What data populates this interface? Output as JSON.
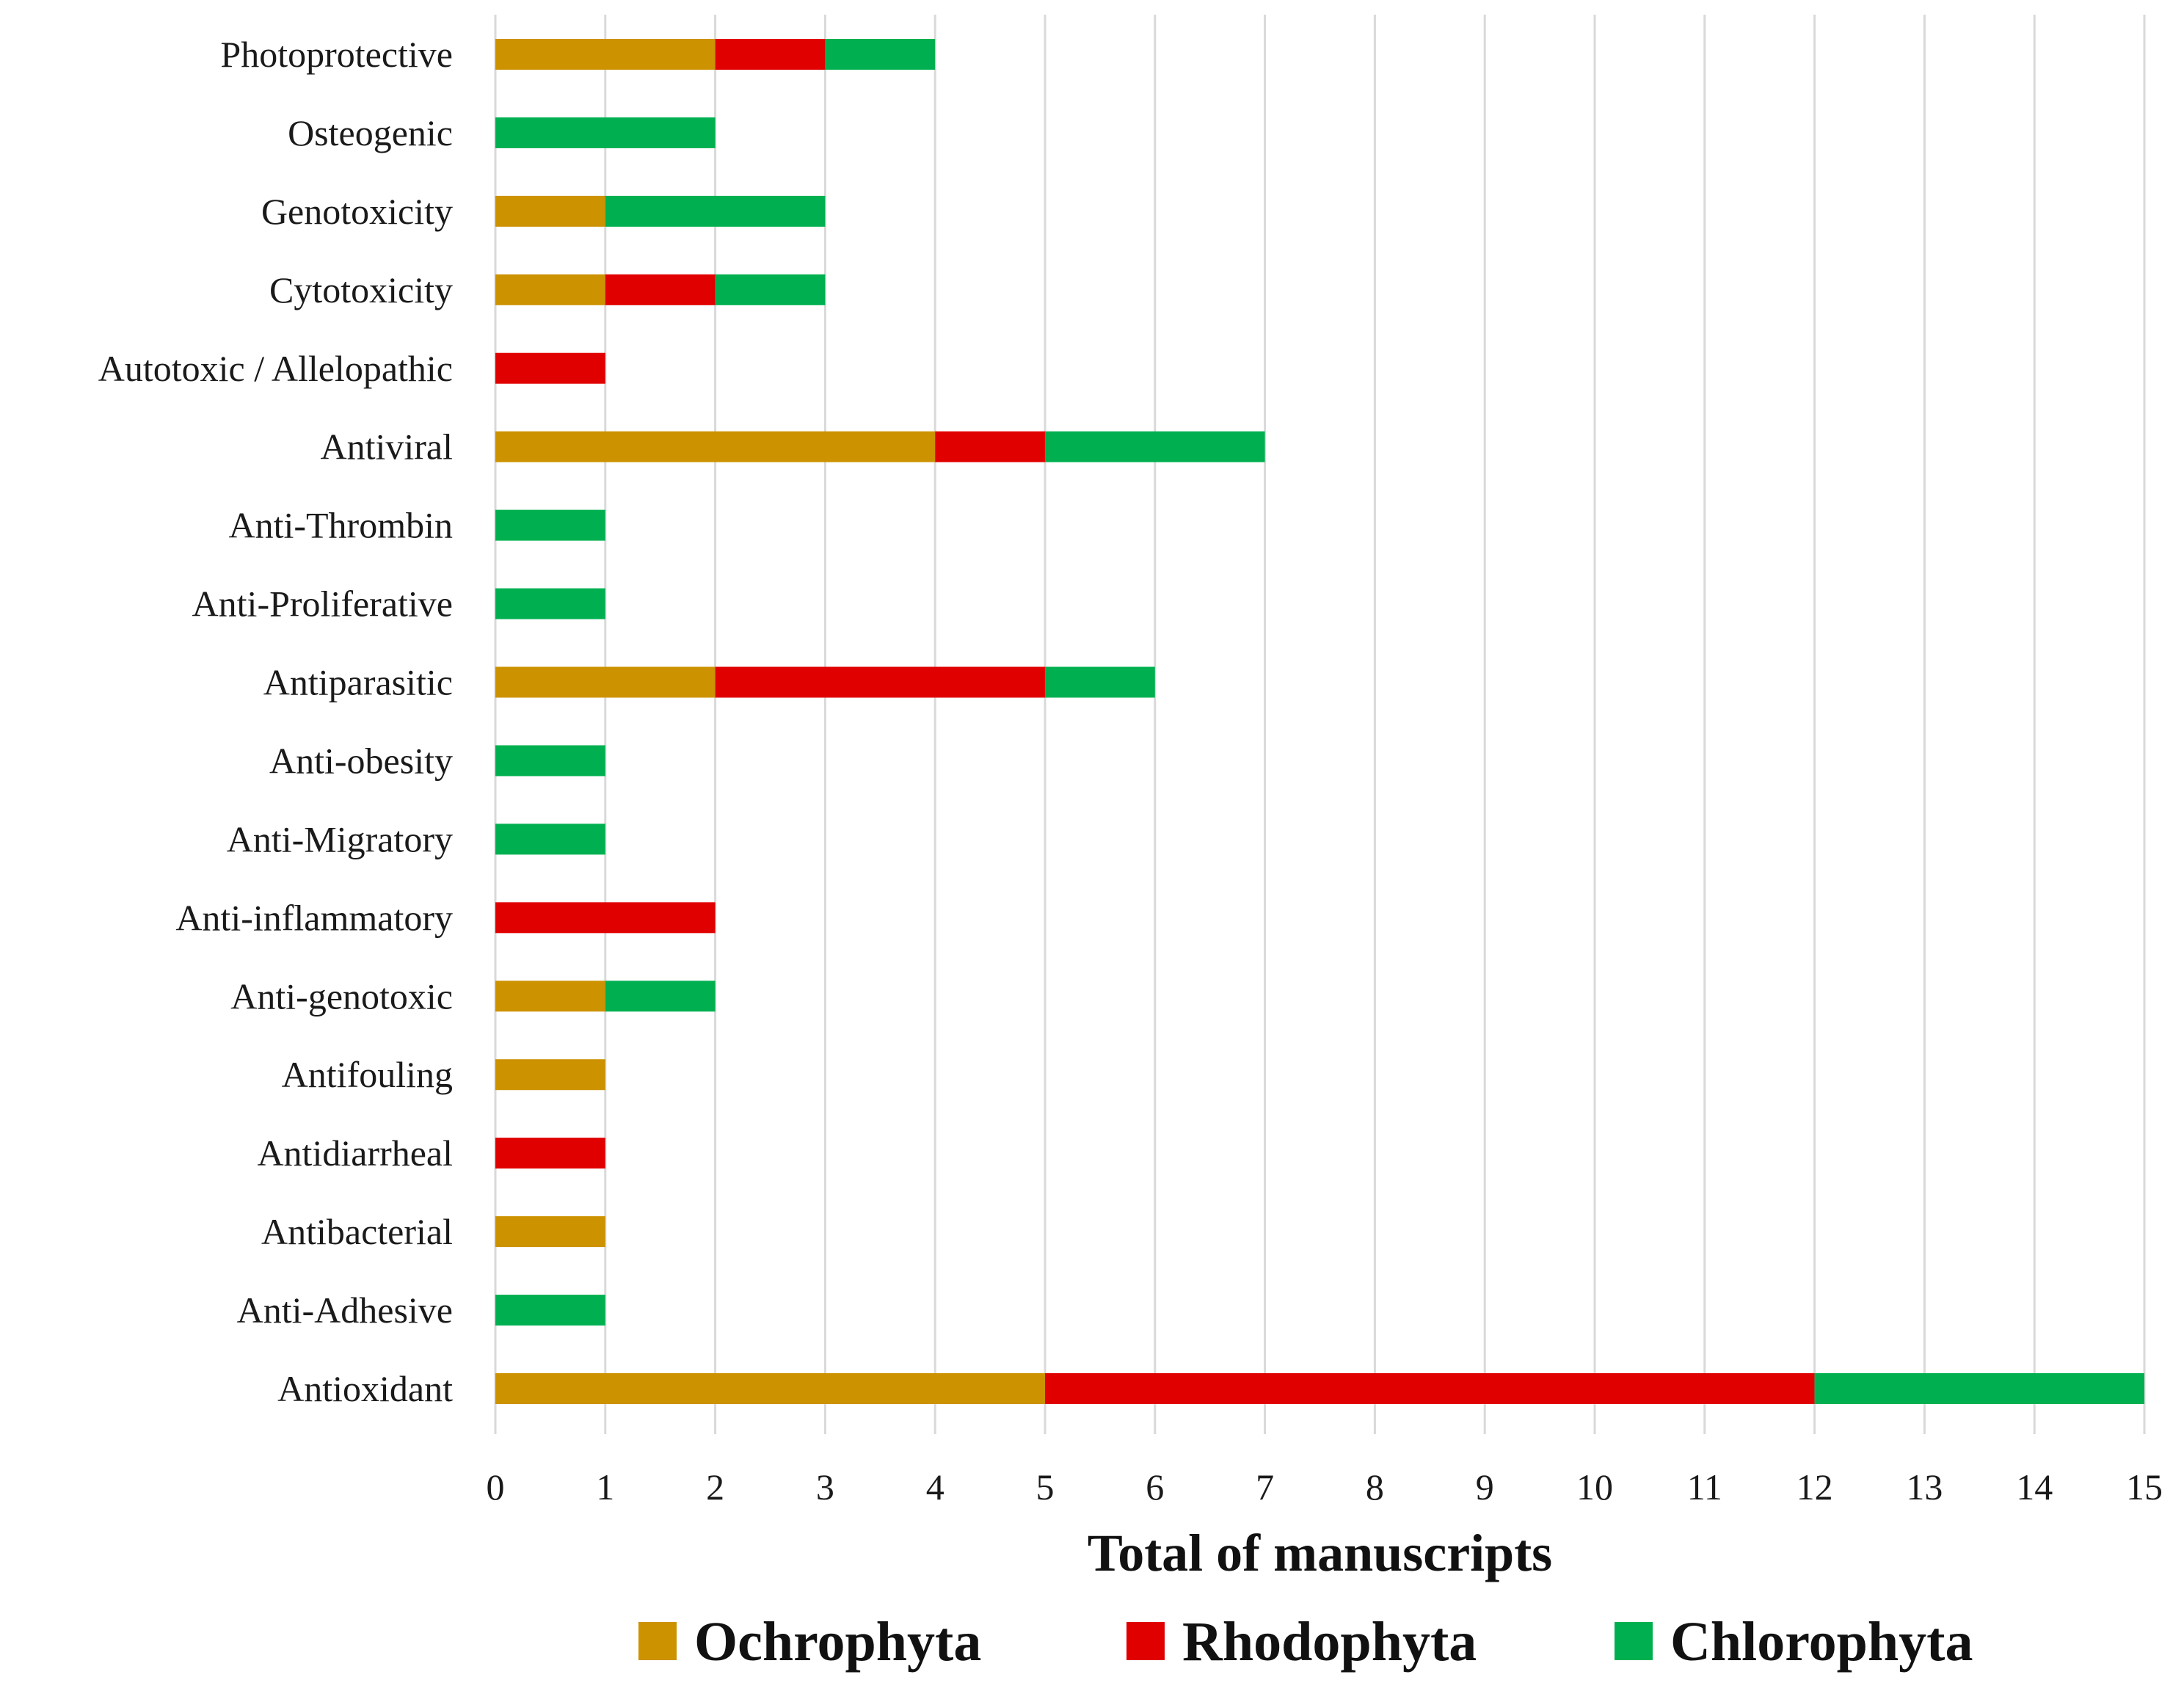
{
  "chart_data": {
    "type": "bar",
    "orientation": "horizontal",
    "stacked": true,
    "title": "",
    "xlabel": "Total of manuscripts",
    "ylabel": "",
    "xlim": [
      0,
      15
    ],
    "x_ticks": [
      0,
      1,
      2,
      3,
      4,
      5,
      6,
      7,
      8,
      9,
      10,
      11,
      12,
      13,
      14,
      15
    ],
    "grid": "vertical",
    "legend_position": "bottom",
    "categories": [
      "Photoprotective",
      "Osteogenic",
      "Genotoxicity",
      "Cytotoxicity",
      "Autotoxic / Allelopathic",
      "Antiviral",
      "Anti-Thrombin",
      "Anti-Proliferative",
      "Antiparasitic",
      "Anti-obesity",
      "Anti-Migratory",
      "Anti-inflammatory",
      "Anti-genotoxic",
      "Antifouling",
      "Antidiarrheal",
      "Antibacterial",
      "Anti-Adhesive",
      "Antioxidant"
    ],
    "series": [
      {
        "name": "Ochrophyta",
        "color": "#cc9200",
        "values": [
          2,
          0,
          1,
          1,
          0,
          4,
          0,
          0,
          2,
          0,
          0,
          0,
          1,
          1,
          0,
          1,
          0,
          5
        ]
      },
      {
        "name": "Rhodophyta",
        "color": "#e00000",
        "values": [
          1,
          0,
          0,
          1,
          1,
          1,
          0,
          0,
          3,
          0,
          0,
          2,
          0,
          0,
          1,
          0,
          0,
          7
        ]
      },
      {
        "name": "Chlorophyta",
        "color": "#00b050",
        "values": [
          1,
          2,
          2,
          1,
          0,
          2,
          1,
          1,
          1,
          1,
          1,
          0,
          1,
          0,
          0,
          0,
          1,
          3
        ]
      }
    ]
  }
}
